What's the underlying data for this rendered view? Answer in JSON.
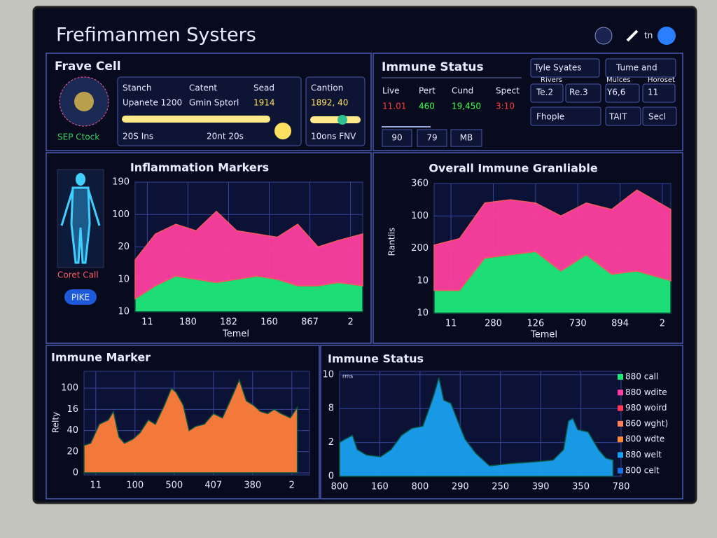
{
  "header": {
    "title": "Frefimanmen Systers",
    "icon_text": "tn"
  },
  "cell_panel": {
    "title": "Frave Cell",
    "caption": "SEP Ctock",
    "columns": [
      "Stanch",
      "Catent",
      "Sead"
    ],
    "row": [
      "Upanete 1200",
      "Gmin Sptorl",
      "1914"
    ],
    "footer": [
      "20S Ins",
      "20nt 20s"
    ],
    "side_title": "Cantion",
    "side_value": "1892, 40",
    "side_footer": "10ons FNV"
  },
  "status_panel": {
    "title": "Immune Status",
    "columns": [
      "Live",
      "Pert",
      "Cund",
      "Spect"
    ],
    "values": [
      {
        "text": "11.01",
        "color": "#ff3b3b"
      },
      {
        "text": "460",
        "color": "#3cff4a"
      },
      {
        "text": "19,450",
        "color": "#3cff4a"
      },
      {
        "text": "3:10",
        "color": "#ff3b3b"
      }
    ],
    "inputs": [
      "90",
      "79",
      "MB"
    ],
    "buttons": [
      "Tyle Syates",
      "Rivers",
      "Tume and",
      "Mulces",
      "Horoset",
      "Te.2",
      "Re.3",
      "Y6,6",
      "11",
      "Fhople",
      "TAIT",
      "Secl"
    ]
  },
  "body_panel": {
    "caption": "Coret Call",
    "button": "PIKE"
  },
  "chart_data": [
    {
      "type": "area",
      "stacked": true,
      "title": "Inflammation Markers",
      "xlabel": "Temel",
      "x": [
        -0.3,
        0.2,
        0.7,
        1.2,
        1.7,
        2.2,
        2.7,
        3.2,
        3.7,
        4.2,
        4.7,
        5.3
      ],
      "series": [
        {
          "color": "#1ee87a",
          "values": [
            0.4,
            0.8,
            1.1,
            1.0,
            0.9,
            1.0,
            1.1,
            1.0,
            0.8,
            0.8,
            0.9,
            0.8
          ]
        },
        {
          "color": "#ff3fa0",
          "values": [
            1.2,
            1.6,
            1.6,
            1.5,
            2.2,
            1.5,
            1.3,
            1.3,
            1.9,
            1.2,
            1.3,
            1.6
          ]
        }
      ],
      "xlim": [
        -0.3,
        5.3
      ],
      "ylim": [
        0,
        4
      ],
      "xticks": [
        {
          "value": 0,
          "label": "11"
        },
        {
          "value": 1,
          "label": "180"
        },
        {
          "value": 2,
          "label": "182"
        },
        {
          "value": 3,
          "label": "160"
        },
        {
          "value": 4,
          "label": "867"
        },
        {
          "value": 5,
          "label": "2"
        }
      ],
      "yticks": [
        {
          "value": 0,
          "label": "10"
        },
        {
          "value": 1,
          "label": "10"
        },
        {
          "value": 2,
          "label": "20"
        },
        {
          "value": 3,
          "label": "100"
        },
        {
          "value": 4,
          "label": "190"
        }
      ],
      "grid": true
    },
    {
      "type": "area",
      "stacked": true,
      "title": "Overall Immune Granliable",
      "xlabel": "Temel",
      "ylabel": "Rantlis",
      "x": [
        -0.4,
        0.2,
        0.8,
        1.4,
        2.0,
        2.6,
        3.2,
        3.8,
        4.4,
        5.2
      ],
      "series": [
        {
          "color": "#1ee87a",
          "values": [
            0.7,
            0.7,
            1.7,
            1.8,
            1.9,
            1.3,
            1.8,
            1.2,
            1.3,
            1.0
          ]
        },
        {
          "color": "#ff3fa0",
          "values": [
            1.4,
            1.6,
            1.7,
            1.7,
            1.5,
            1.7,
            1.6,
            2.0,
            2.5,
            2.2
          ]
        }
      ],
      "xlim": [
        -0.4,
        5.2
      ],
      "ylim": [
        0,
        4
      ],
      "xticks": [
        {
          "value": 0,
          "label": "11"
        },
        {
          "value": 1,
          "label": "280"
        },
        {
          "value": 2,
          "label": "126"
        },
        {
          "value": 3,
          "label": "730"
        },
        {
          "value": 4,
          "label": "894"
        },
        {
          "value": 5,
          "label": "2"
        }
      ],
      "yticks": [
        {
          "value": 0,
          "label": "10"
        },
        {
          "value": 1,
          "label": "10"
        },
        {
          "value": 2,
          "label": "200"
        },
        {
          "value": 3,
          "label": "100"
        },
        {
          "value": 4,
          "label": "360"
        }
      ],
      "grid": true
    },
    {
      "type": "area",
      "title": "Immune Marker",
      "ylabel": "Relty",
      "x": [
        -0.3,
        -0.13,
        0.09,
        0.32,
        0.45,
        0.59,
        0.73,
        0.95,
        1.13,
        1.34,
        1.52,
        1.75,
        1.93,
        2.05,
        2.23,
        2.38,
        2.55,
        2.77,
        3.0,
        3.23,
        3.45,
        3.66,
        3.84,
        4.02,
        4.2,
        4.38,
        4.55,
        4.73,
        4.96,
        5.14
      ],
      "series": [
        {
          "color": "#ff7f3a",
          "values": [
            1.3,
            1.4,
            2.3,
            2.5,
            2.9,
            1.7,
            1.4,
            1.6,
            1.9,
            2.5,
            2.3,
            3.2,
            4.0,
            3.8,
            3.2,
            2.0,
            2.2,
            2.3,
            2.8,
            2.6,
            3.5,
            4.4,
            3.4,
            3.2,
            2.9,
            2.8,
            3.0,
            2.8,
            2.6,
            3.1
          ]
        }
      ],
      "xlim": [
        -0.3,
        5.45
      ],
      "ylim": [
        -0.1,
        4.8
      ],
      "xticks": [
        {
          "value": 0,
          "label": "11"
        },
        {
          "value": 1,
          "label": "100"
        },
        {
          "value": 2,
          "label": "500"
        },
        {
          "value": 3,
          "label": "407"
        },
        {
          "value": 4,
          "label": "380"
        },
        {
          "value": 5,
          "label": "2"
        }
      ],
      "yticks": [
        0,
        {
          "value": 1,
          "label": "20"
        },
        {
          "value": 2,
          "label": "40"
        },
        {
          "value": 3,
          "label": "16"
        },
        {
          "value": 4,
          "label": "100"
        }
      ],
      "grid": true
    },
    {
      "type": "area",
      "title": "Immune Status",
      "annotation": "rms",
      "x": [
        0,
        0.14,
        0.32,
        0.44,
        0.67,
        1.02,
        1.28,
        1.54,
        1.8,
        2.07,
        2.24,
        2.36,
        2.47,
        2.59,
        2.77,
        2.94,
        3.12,
        3.38,
        3.73,
        4.26,
        4.78,
        5.31,
        5.57,
        5.69,
        5.8,
        5.92,
        6.18,
        6.44,
        6.62,
        6.8
      ],
      "series": [
        {
          "color": "#1aa0f0",
          "values": [
            1.0,
            1.1,
            1.21,
            0.79,
            0.63,
            0.58,
            0.79,
            1.21,
            1.42,
            1.48,
            2.04,
            2.46,
            2.92,
            2.25,
            2.15,
            1.63,
            1.1,
            0.69,
            0.31,
            0.38,
            0.42,
            0.48,
            0.79,
            1.63,
            1.71,
            1.38,
            1.31,
            0.79,
            0.54,
            0.48
          ]
        }
      ],
      "xlim": [
        0,
        7
      ],
      "ylim": [
        0,
        3.1
      ],
      "xticks": [
        {
          "value": 0,
          "label": "800"
        },
        {
          "value": 1,
          "label": "160"
        },
        {
          "value": 2,
          "label": "800"
        },
        {
          "value": 3,
          "label": "290"
        },
        {
          "value": 4,
          "label": "250"
        },
        {
          "value": 5,
          "label": "390"
        },
        {
          "value": 6,
          "label": "350"
        },
        {
          "value": 7,
          "label": "780"
        }
      ],
      "yticks": [
        0,
        {
          "value": 1,
          "label": "2"
        },
        {
          "value": 2,
          "label": "8"
        },
        {
          "value": 3,
          "label": "10"
        }
      ],
      "grid": true,
      "legend": [
        {
          "label": "880 call",
          "color": "#1ee87a"
        },
        {
          "label": "880 wdite",
          "color": "#ff3fa0"
        },
        {
          "label": "980 woird",
          "color": "#ff3b5c"
        },
        {
          "label": "860 wght)",
          "color": "#ff7f5a"
        },
        {
          "label": "800 wdte",
          "color": "#ff8a3a"
        },
        {
          "label": "880 welt",
          "color": "#1aa0f0"
        },
        {
          "label": "800 celt",
          "color": "#1a70e0"
        }
      ]
    }
  ]
}
